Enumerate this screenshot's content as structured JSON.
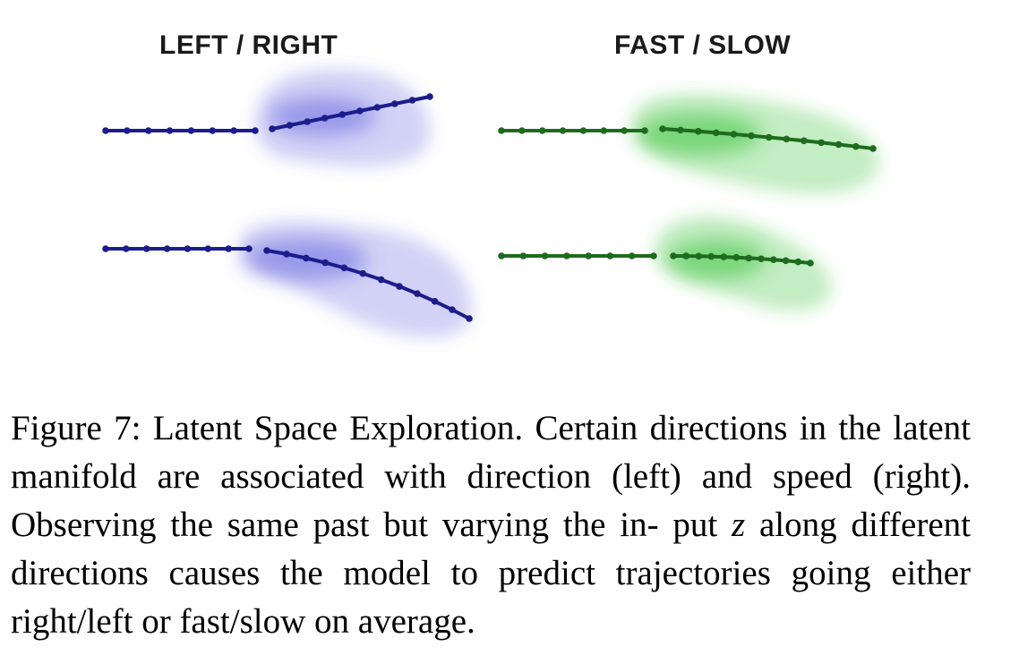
{
  "figure": {
    "panels": [
      {
        "id": "left_right",
        "title": "LEFT / RIGHT",
        "trajectories": [
          {
            "variant": "right"
          },
          {
            "variant": "left"
          }
        ]
      },
      {
        "id": "fast_slow",
        "title": "FAST / SLOW",
        "trajectories": [
          {
            "variant": "fast"
          },
          {
            "variant": "slow"
          }
        ]
      }
    ],
    "colors": {
      "left_right_line": "#1c1c8c",
      "left_right_cloud": "#6a6ae0",
      "fast_slow_line": "#1e6b1e",
      "fast_slow_cloud": "#3cc23c"
    }
  },
  "caption": {
    "label": "Figure 7:",
    "title": "Latent Space Exploration.",
    "body_1": "Certain directions in the latent manifold are associated with direction (left) and speed (right). Observing the same past but varying the in- put",
    "var": "z",
    "body_2": "along different directions causes the model to predict trajectories going either right/left or fast/slow on average."
  }
}
